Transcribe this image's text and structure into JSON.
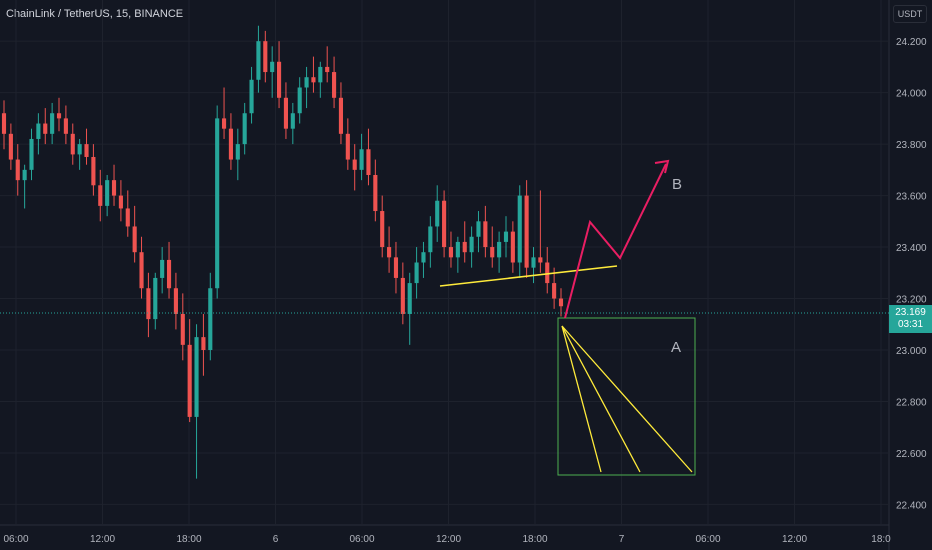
{
  "header": {
    "title": "ChainLink / TetherUS, 15, BINANCE"
  },
  "currency_button": "USDT",
  "last_price": {
    "value": "23.169",
    "countdown": "03:31"
  },
  "colors": {
    "up": "#26a69a",
    "down": "#ef5350",
    "wave": "#e91e63",
    "yellow": "#ffeb3b",
    "box": "#4caf50"
  },
  "annotations": {
    "label_a": "A",
    "label_b": "B"
  },
  "chart_data": {
    "type": "candlestick",
    "title": "ChainLink / TetherUS, 15, BINANCE",
    "ylim": [
      22.32,
      24.36
    ],
    "y_ticks": [
      "24.200",
      "24.000",
      "23.800",
      "23.600",
      "23.400",
      "23.200",
      "23.000",
      "22.800",
      "22.600",
      "22.400"
    ],
    "x_ticks": [
      "06:00",
      "12:00",
      "18:00",
      "6",
      "06:00",
      "12:00",
      "18:00",
      "7",
      "06:00",
      "12:00",
      "18:0"
    ],
    "candles": [
      [
        23.92,
        23.97,
        23.78,
        23.84
      ],
      [
        23.84,
        23.88,
        23.7,
        23.74
      ],
      [
        23.74,
        23.8,
        23.6,
        23.66
      ],
      [
        23.66,
        23.72,
        23.55,
        23.7
      ],
      [
        23.7,
        23.86,
        23.66,
        23.82
      ],
      [
        23.82,
        23.92,
        23.76,
        23.88
      ],
      [
        23.88,
        23.94,
        23.8,
        23.84
      ],
      [
        23.84,
        23.96,
        23.8,
        23.92
      ],
      [
        23.92,
        23.98,
        23.85,
        23.9
      ],
      [
        23.9,
        23.95,
        23.8,
        23.84
      ],
      [
        23.84,
        23.88,
        23.72,
        23.76
      ],
      [
        23.76,
        23.82,
        23.7,
        23.8
      ],
      [
        23.8,
        23.86,
        23.72,
        23.75
      ],
      [
        23.75,
        23.8,
        23.6,
        23.64
      ],
      [
        23.64,
        23.7,
        23.5,
        23.56
      ],
      [
        23.56,
        23.68,
        23.52,
        23.66
      ],
      [
        23.66,
        23.72,
        23.56,
        23.6
      ],
      [
        23.6,
        23.66,
        23.5,
        23.55
      ],
      [
        23.55,
        23.62,
        23.44,
        23.48
      ],
      [
        23.48,
        23.56,
        23.34,
        23.38
      ],
      [
        23.38,
        23.44,
        23.2,
        23.24
      ],
      [
        23.24,
        23.3,
        23.05,
        23.12
      ],
      [
        23.12,
        23.3,
        23.08,
        23.28
      ],
      [
        23.28,
        23.4,
        23.22,
        23.35
      ],
      [
        23.35,
        23.42,
        23.2,
        23.24
      ],
      [
        23.24,
        23.3,
        23.08,
        23.14
      ],
      [
        23.14,
        23.22,
        22.96,
        23.02
      ],
      [
        23.02,
        23.12,
        22.72,
        22.74
      ],
      [
        22.74,
        23.1,
        22.5,
        23.05
      ],
      [
        23.05,
        23.14,
        22.9,
        23.0
      ],
      [
        23.0,
        23.3,
        22.96,
        23.24
      ],
      [
        23.24,
        23.95,
        23.2,
        23.9
      ],
      [
        23.9,
        24.02,
        23.82,
        23.86
      ],
      [
        23.86,
        23.92,
        23.7,
        23.74
      ],
      [
        23.74,
        23.86,
        23.66,
        23.8
      ],
      [
        23.8,
        23.96,
        23.76,
        23.92
      ],
      [
        23.92,
        24.1,
        23.88,
        24.05
      ],
      [
        24.05,
        24.26,
        24.0,
        24.2
      ],
      [
        24.2,
        24.24,
        24.04,
        24.08
      ],
      [
        24.08,
        24.18,
        23.98,
        24.12
      ],
      [
        24.12,
        24.2,
        23.94,
        23.98
      ],
      [
        23.98,
        24.04,
        23.82,
        23.86
      ],
      [
        23.86,
        23.96,
        23.8,
        23.92
      ],
      [
        23.92,
        24.06,
        23.88,
        24.02
      ],
      [
        24.02,
        24.1,
        23.94,
        24.06
      ],
      [
        24.06,
        24.14,
        24.0,
        24.04
      ],
      [
        24.04,
        24.12,
        23.98,
        24.1
      ],
      [
        24.1,
        24.18,
        24.04,
        24.08
      ],
      [
        24.08,
        24.14,
        23.94,
        23.98
      ],
      [
        23.98,
        24.04,
        23.8,
        23.84
      ],
      [
        23.84,
        23.9,
        23.7,
        23.74
      ],
      [
        23.74,
        23.8,
        23.62,
        23.7
      ],
      [
        23.7,
        23.84,
        23.66,
        23.78
      ],
      [
        23.78,
        23.86,
        23.64,
        23.68
      ],
      [
        23.68,
        23.74,
        23.5,
        23.54
      ],
      [
        23.54,
        23.6,
        23.36,
        23.4
      ],
      [
        23.4,
        23.48,
        23.3,
        23.36
      ],
      [
        23.36,
        23.42,
        23.22,
        23.28
      ],
      [
        23.28,
        23.34,
        23.1,
        23.14
      ],
      [
        23.14,
        23.3,
        23.02,
        23.26
      ],
      [
        23.26,
        23.4,
        23.2,
        23.34
      ],
      [
        23.34,
        23.42,
        23.28,
        23.38
      ],
      [
        23.38,
        23.52,
        23.32,
        23.48
      ],
      [
        23.48,
        23.64,
        23.42,
        23.58
      ],
      [
        23.58,
        23.62,
        23.36,
        23.4
      ],
      [
        23.4,
        23.46,
        23.32,
        23.36
      ],
      [
        23.36,
        23.44,
        23.3,
        23.42
      ],
      [
        23.42,
        23.5,
        23.34,
        23.38
      ],
      [
        23.38,
        23.48,
        23.32,
        23.44
      ],
      [
        23.44,
        23.54,
        23.38,
        23.5
      ],
      [
        23.5,
        23.56,
        23.36,
        23.4
      ],
      [
        23.4,
        23.48,
        23.32,
        23.36
      ],
      [
        23.36,
        23.46,
        23.3,
        23.42
      ],
      [
        23.42,
        23.52,
        23.36,
        23.46
      ],
      [
        23.46,
        23.5,
        23.3,
        23.34
      ],
      [
        23.34,
        23.64,
        23.28,
        23.6
      ],
      [
        23.6,
        23.66,
        23.28,
        23.32
      ],
      [
        23.32,
        23.4,
        23.26,
        23.36
      ],
      [
        23.36,
        23.62,
        23.3,
        23.34
      ],
      [
        23.34,
        23.4,
        23.22,
        23.26
      ],
      [
        23.26,
        23.32,
        23.16,
        23.2
      ],
      [
        23.2,
        23.24,
        23.13,
        23.17
      ]
    ]
  }
}
